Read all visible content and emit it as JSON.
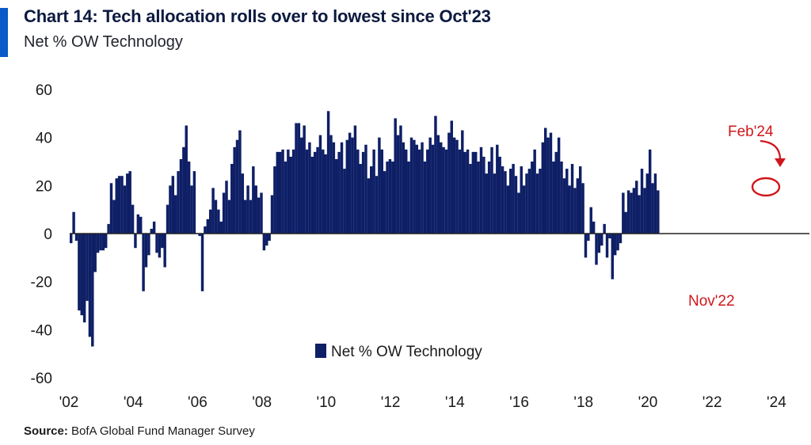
{
  "header": {
    "title": "Chart 14: Tech allocation rolls over to lowest since Oct'23",
    "subtitle": "Net % OW Technology"
  },
  "footer": {
    "source_label": "Source:",
    "source_text": " BofA Global Fund Manager Survey"
  },
  "colors": {
    "bar": "#0e1f66",
    "accent": "#0a5ac8",
    "annotation": "#d0161b",
    "baseline": "#222222"
  },
  "chart_data": {
    "type": "bar",
    "ylim": [
      -60,
      60
    ],
    "yticks": [
      60,
      40,
      20,
      0,
      -20,
      -40,
      -60
    ],
    "xlim": [
      2002.0,
      2025.0
    ],
    "xticks": [
      {
        "value": 2002,
        "label": "'02"
      },
      {
        "value": 2004,
        "label": "'04"
      },
      {
        "value": 2006,
        "label": "'06"
      },
      {
        "value": 2008,
        "label": "'08"
      },
      {
        "value": 2010,
        "label": "'10"
      },
      {
        "value": 2012,
        "label": "'12"
      },
      {
        "value": 2014,
        "label": "'14"
      },
      {
        "value": 2016,
        "label": "'16"
      },
      {
        "value": 2018,
        "label": "'18"
      },
      {
        "value": 2020,
        "label": "'20"
      },
      {
        "value": 2022,
        "label": "'22"
      },
      {
        "value": 2024,
        "label": "'24"
      }
    ],
    "series": [
      {
        "name": "Net % OW Technology",
        "start": "2002-01",
        "frequency": "monthly",
        "values": [
          -4,
          9,
          -3,
          -32,
          -34,
          -37,
          -28,
          -43,
          -47,
          -16,
          -8,
          -7,
          -7,
          -6,
          4,
          21,
          14,
          23,
          24,
          24,
          20,
          25,
          26,
          12,
          -6,
          8,
          7,
          -24,
          -14,
          -9,
          2,
          5,
          -8,
          -10,
          -6,
          -14,
          12,
          20,
          24,
          16,
          26,
          31,
          36,
          45,
          30,
          20,
          26,
          0,
          -1,
          -24,
          3,
          6,
          10,
          19,
          14,
          10,
          5,
          17,
          22,
          14,
          29,
          36,
          39,
          43,
          25,
          14,
          20,
          14,
          28,
          20,
          15,
          17,
          -7,
          -5,
          -3,
          16,
          28,
          34,
          34,
          35,
          30,
          35,
          32,
          35,
          46,
          46,
          40,
          45,
          35,
          38,
          32,
          34,
          36,
          41,
          35,
          33,
          51,
          41,
          38,
          31,
          34,
          38,
          27,
          39,
          42,
          40,
          45,
          35,
          29,
          34,
          37,
          23,
          28,
          35,
          24,
          40,
          35,
          26,
          30,
          31,
          30,
          48,
          41,
          45,
          38,
          35,
          30,
          40,
          39,
          37,
          35,
          38,
          30,
          35,
          40,
          37,
          49,
          41,
          38,
          36,
          35,
          42,
          47,
          40,
          39,
          35,
          43,
          34,
          35,
          29,
          34,
          34,
          30,
          36,
          32,
          25,
          30,
          36,
          25,
          37,
          32,
          28,
          26,
          20,
          27,
          29,
          24,
          17,
          28,
          20,
          25,
          27,
          30,
          35,
          25,
          27,
          38,
          44,
          40,
          42,
          30,
          34,
          40,
          30,
          23,
          27,
          20,
          29,
          19,
          23,
          28,
          21,
          -10,
          -3,
          11,
          5,
          -13,
          -8,
          -5,
          4,
          -10,
          -2,
          -19,
          -9,
          -7,
          -4,
          17,
          9,
          18,
          17,
          19,
          22,
          16,
          27,
          19,
          25,
          35,
          21,
          25,
          18
        ]
      }
    ],
    "legend": {
      "position": "bottom-center",
      "label": "Net % OW Technology"
    },
    "annotations": [
      {
        "text": "Feb'24"
      },
      {
        "text": "Nov'22"
      }
    ]
  }
}
